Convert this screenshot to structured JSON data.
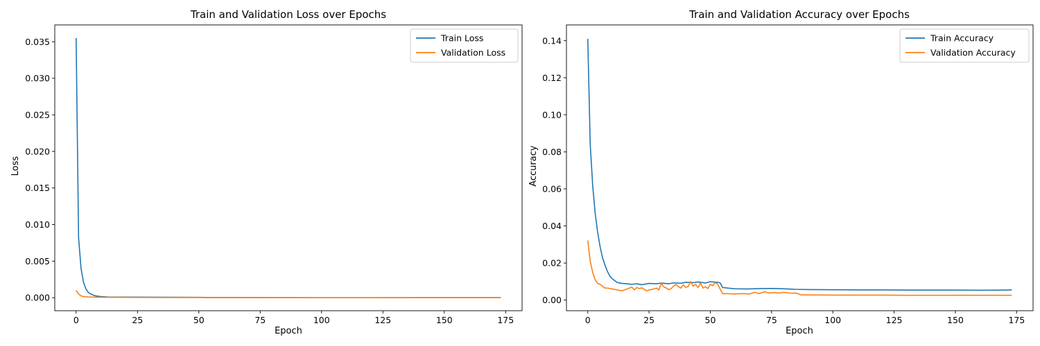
{
  "colors": {
    "train": "#1f77b4",
    "validation": "#ff7f0e",
    "axis": "#000000",
    "legend_border": "#cccccc"
  },
  "chart_data": [
    {
      "type": "line",
      "title": "Train and Validation Loss over Epochs",
      "xlabel": "Epoch",
      "ylabel": "Loss",
      "xlim": [
        -8.7,
        181.7
      ],
      "ylim": [
        -0.00178,
        0.0373
      ],
      "xticks": [
        0,
        25,
        50,
        75,
        100,
        125,
        150,
        175
      ],
      "yticks": [
        0.0,
        0.005,
        0.01,
        0.015,
        0.02,
        0.025,
        0.03,
        0.035
      ],
      "ytick_labels": [
        "0.000",
        "0.005",
        "0.010",
        "0.015",
        "0.020",
        "0.025",
        "0.030",
        "0.035"
      ],
      "grid": false,
      "legend": "top-right",
      "series": [
        {
          "name": "Train Loss",
          "color": "#1f77b4",
          "points": [
            [
              0,
              0.0355
            ],
            [
              1,
              0.0082
            ],
            [
              2,
              0.004
            ],
            [
              3,
              0.0021
            ],
            [
              4,
              0.0012
            ],
            [
              5,
              0.0007
            ],
            [
              6,
              0.0005
            ],
            [
              7,
              0.00035
            ],
            [
              8,
              0.00025
            ],
            [
              10,
              0.00015
            ],
            [
              13,
              0.0001
            ],
            [
              20,
              8e-05
            ],
            [
              30,
              7e-05
            ],
            [
              40,
              6e-05
            ],
            [
              50,
              5e-05
            ],
            [
              55,
              2e-05
            ],
            [
              75,
              1e-05
            ],
            [
              100,
              5e-06
            ],
            [
              173,
              1e-05
            ]
          ]
        },
        {
          "name": "Validation Loss",
          "color": "#ff7f0e",
          "points": [
            [
              0,
              0.001
            ],
            [
              1,
              0.0005
            ],
            [
              2,
              0.00025
            ],
            [
              3,
              0.00015
            ],
            [
              5,
              0.0001
            ],
            [
              10,
              6e-05
            ],
            [
              25,
              4e-05
            ],
            [
              50,
              2e-05
            ],
            [
              55,
              1e-05
            ],
            [
              100,
              5e-06
            ],
            [
              173,
              5e-06
            ]
          ]
        }
      ]
    },
    {
      "type": "line",
      "title": "Train and Validation Accuracy over Epochs",
      "xlabel": "Epoch",
      "ylabel": "Accuracy",
      "xlim": [
        -8.7,
        181.7
      ],
      "ylim": [
        -0.00573,
        0.1485
      ],
      "xticks": [
        0,
        25,
        50,
        75,
        100,
        125,
        150,
        175
      ],
      "yticks": [
        0.0,
        0.02,
        0.04,
        0.06,
        0.08,
        0.1,
        0.12,
        0.14
      ],
      "ytick_labels": [
        "0.00",
        "0.02",
        "0.04",
        "0.06",
        "0.08",
        "0.10",
        "0.12",
        "0.14"
      ],
      "grid": false,
      "legend": "top-right",
      "series": [
        {
          "name": "Train Accuracy",
          "color": "#1f77b4",
          "points": [
            [
              0,
              0.141
            ],
            [
              1,
              0.084
            ],
            [
              2,
              0.062
            ],
            [
              3,
              0.047
            ],
            [
              4,
              0.037
            ],
            [
              5,
              0.029
            ],
            [
              6,
              0.023
            ],
            [
              7,
              0.019
            ],
            [
              8,
              0.0155
            ],
            [
              9,
              0.013
            ],
            [
              10,
              0.0115
            ],
            [
              11,
              0.0105
            ],
            [
              12,
              0.0095
            ],
            [
              14,
              0.009
            ],
            [
              16,
              0.0088
            ],
            [
              18,
              0.0085
            ],
            [
              20,
              0.0088
            ],
            [
              22,
              0.0083
            ],
            [
              25,
              0.009
            ],
            [
              28,
              0.0088
            ],
            [
              30,
              0.0092
            ],
            [
              33,
              0.0088
            ],
            [
              35,
              0.0093
            ],
            [
              38,
              0.0091
            ],
            [
              40,
              0.0096
            ],
            [
              43,
              0.0094
            ],
            [
              45,
              0.0098
            ],
            [
              48,
              0.0092
            ],
            [
              50,
              0.0099
            ],
            [
              53,
              0.0096
            ],
            [
              54,
              0.0093
            ],
            [
              55,
              0.0068
            ],
            [
              57,
              0.0065
            ],
            [
              60,
              0.0061
            ],
            [
              65,
              0.006
            ],
            [
              70,
              0.0062
            ],
            [
              75,
              0.0063
            ],
            [
              80,
              0.0061
            ],
            [
              85,
              0.0058
            ],
            [
              90,
              0.0057
            ],
            [
              100,
              0.0056
            ],
            [
              110,
              0.0055
            ],
            [
              120,
              0.0055
            ],
            [
              130,
              0.0054
            ],
            [
              140,
              0.0054
            ],
            [
              150,
              0.0054
            ],
            [
              160,
              0.0053
            ],
            [
              170,
              0.0054
            ],
            [
              173,
              0.0055
            ]
          ]
        },
        {
          "name": "Validation Accuracy",
          "color": "#ff7f0e",
          "points": [
            [
              0,
              0.0322
            ],
            [
              1,
              0.021
            ],
            [
              2,
              0.015
            ],
            [
              3,
              0.011
            ],
            [
              4,
              0.009
            ],
            [
              5,
              0.0085
            ],
            [
              6,
              0.0075
            ],
            [
              7,
              0.0065
            ],
            [
              8,
              0.0065
            ],
            [
              10,
              0.006
            ],
            [
              12,
              0.0055
            ],
            [
              14,
              0.005
            ],
            [
              16,
              0.006
            ],
            [
              18,
              0.007
            ],
            [
              19,
              0.0055
            ],
            [
              20,
              0.0068
            ],
            [
              21,
              0.0062
            ],
            [
              22,
              0.0066
            ],
            [
              23,
              0.0058
            ],
            [
              24,
              0.005
            ],
            [
              25,
              0.0055
            ],
            [
              27,
              0.006
            ],
            [
              28,
              0.0065
            ],
            [
              29,
              0.0055
            ],
            [
              30,
              0.009
            ],
            [
              31,
              0.0072
            ],
            [
              32,
              0.0065
            ],
            [
              33,
              0.0056
            ],
            [
              34,
              0.0062
            ],
            [
              35,
              0.0075
            ],
            [
              36,
              0.0085
            ],
            [
              37,
              0.0072
            ],
            [
              38,
              0.0065
            ],
            [
              39,
              0.0082
            ],
            [
              40,
              0.0068
            ],
            [
              41,
              0.0074
            ],
            [
              42,
              0.01
            ],
            [
              43,
              0.0075
            ],
            [
              44,
              0.0085
            ],
            [
              45,
              0.0068
            ],
            [
              46,
              0.0092
            ],
            [
              47,
              0.0065
            ],
            [
              48,
              0.0072
            ],
            [
              49,
              0.0062
            ],
            [
              50,
              0.0085
            ],
            [
              51,
              0.0078
            ],
            [
              52,
              0.0095
            ],
            [
              53,
              0.0085
            ],
            [
              54,
              0.006
            ],
            [
              55,
              0.0035
            ],
            [
              57,
              0.0035
            ],
            [
              60,
              0.0033
            ],
            [
              63,
              0.0035
            ],
            [
              66,
              0.0033
            ],
            [
              68,
              0.0042
            ],
            [
              70,
              0.0035
            ],
            [
              72,
              0.0045
            ],
            [
              74,
              0.0038
            ],
            [
              76,
              0.0041
            ],
            [
              78,
              0.0038
            ],
            [
              80,
              0.0042
            ],
            [
              83,
              0.0037
            ],
            [
              85,
              0.0038
            ],
            [
              87,
              0.0028
            ],
            [
              90,
              0.0028
            ],
            [
              100,
              0.0027
            ],
            [
              110,
              0.0027
            ],
            [
              120,
              0.0027
            ],
            [
              130,
              0.0026
            ],
            [
              140,
              0.0026
            ],
            [
              150,
              0.0026
            ],
            [
              160,
              0.0026
            ],
            [
              170,
              0.0026
            ],
            [
              173,
              0.0026
            ]
          ]
        }
      ]
    }
  ]
}
